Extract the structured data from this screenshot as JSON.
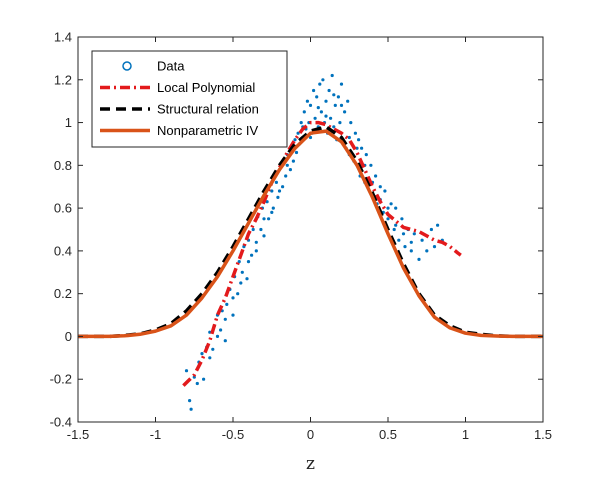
{
  "chart_data": {
    "type": "scatter",
    "title": "",
    "xlabel": "z",
    "ylabel": "",
    "xlim": [
      -1.5,
      1.5
    ],
    "ylim": [
      -0.4,
      1.4
    ],
    "xticks": [
      -1.5,
      -1,
      -0.5,
      0,
      0.5,
      1,
      1.5
    ],
    "yticks": [
      -0.4,
      -0.2,
      0,
      0.2,
      0.4,
      0.6,
      0.8,
      1,
      1.2,
      1.4
    ],
    "xtick_labels": [
      "-1.5",
      "-1",
      "-0.5",
      "0",
      "0.5",
      "1",
      "1.5"
    ],
    "ytick_labels": [
      "-0.4",
      "-0.2",
      "0",
      "0.2",
      "0.4",
      "0.6",
      "0.8",
      "1",
      "1.2",
      "1.4"
    ],
    "grid": false,
    "legend_position": "top-left",
    "series": [
      {
        "name": "Data",
        "kind": "scatter",
        "color": "#0072bd",
        "marker": "circle",
        "points": [
          [
            -0.8,
            -0.16
          ],
          [
            -0.78,
            -0.3
          ],
          [
            -0.77,
            -0.34
          ],
          [
            -0.75,
            -0.19
          ],
          [
            -0.73,
            -0.22
          ],
          [
            -0.72,
            -0.12
          ],
          [
            -0.7,
            -0.08
          ],
          [
            -0.69,
            -0.2
          ],
          [
            -0.67,
            -0.05
          ],
          [
            -0.65,
            0.02
          ],
          [
            -0.63,
            -0.06
          ],
          [
            -0.62,
            0.05
          ],
          [
            -0.6,
            0.1
          ],
          [
            -0.58,
            0.03
          ],
          [
            -0.57,
            0.12
          ],
          [
            -0.55,
            -0.02
          ],
          [
            -0.54,
            0.15
          ],
          [
            -0.52,
            0.22
          ],
          [
            -0.5,
            0.1
          ],
          [
            -0.49,
            0.28
          ],
          [
            -0.47,
            0.2
          ],
          [
            -0.46,
            0.35
          ],
          [
            -0.44,
            0.3
          ],
          [
            -0.43,
            0.42
          ],
          [
            -0.41,
            0.27
          ],
          [
            -0.4,
            0.45
          ],
          [
            -0.38,
            0.38
          ],
          [
            -0.37,
            0.5
          ],
          [
            -0.35,
            0.44
          ],
          [
            -0.34,
            0.56
          ],
          [
            -0.32,
            0.5
          ],
          [
            -0.31,
            0.6
          ],
          [
            -0.3,
            0.47
          ],
          [
            -0.28,
            0.63
          ],
          [
            -0.27,
            0.55
          ],
          [
            -0.25,
            0.68
          ],
          [
            -0.24,
            0.6
          ],
          [
            -0.22,
            0.72
          ],
          [
            -0.21,
            0.65
          ],
          [
            -0.2,
            0.78
          ],
          [
            -0.18,
            0.7
          ],
          [
            -0.17,
            0.82
          ],
          [
            -0.16,
            0.75
          ],
          [
            -0.15,
            0.85
          ],
          [
            -0.13,
            0.78
          ],
          [
            -0.12,
            0.88
          ],
          [
            -0.11,
            0.82
          ],
          [
            -0.1,
            0.92
          ],
          [
            -0.09,
            0.86
          ],
          [
            -0.08,
            0.95
          ],
          [
            -0.07,
            0.9
          ],
          [
            -0.06,
            1.0
          ],
          [
            -0.05,
            0.93
          ],
          [
            -0.04,
            1.05
          ],
          [
            -0.03,
            0.97
          ],
          [
            -0.02,
            1.1
          ],
          [
            -0.01,
            1.0
          ],
          [
            0.0,
            1.08
          ],
          [
            0.01,
            0.95
          ],
          [
            0.02,
            1.15
          ],
          [
            0.03,
            1.02
          ],
          [
            0.04,
            1.12
          ],
          [
            0.05,
            0.98
          ],
          [
            0.06,
            1.18
          ],
          [
            0.07,
            1.05
          ],
          [
            0.08,
            1.2
          ],
          [
            0.09,
            1.0
          ],
          [
            0.1,
            1.1
          ],
          [
            0.11,
            0.95
          ],
          [
            0.12,
            1.15
          ],
          [
            0.13,
            1.02
          ],
          [
            0.14,
            1.22
          ],
          [
            0.15,
            0.98
          ],
          [
            0.16,
            1.08
          ],
          [
            0.17,
            0.92
          ],
          [
            0.18,
            1.12
          ],
          [
            0.19,
            1.0
          ],
          [
            0.2,
            1.18
          ],
          [
            0.21,
            0.9
          ],
          [
            0.22,
            1.05
          ],
          [
            0.23,
            0.88
          ],
          [
            0.24,
            1.1
          ],
          [
            0.25,
            0.85
          ],
          [
            0.26,
            1.0
          ],
          [
            0.28,
            0.82
          ],
          [
            0.29,
            0.95
          ],
          [
            0.3,
            0.8
          ],
          [
            0.31,
            0.92
          ],
          [
            0.32,
            0.75
          ],
          [
            0.33,
            0.88
          ],
          [
            0.35,
            0.72
          ],
          [
            0.36,
            0.85
          ],
          [
            0.37,
            0.7
          ],
          [
            0.39,
            0.8
          ],
          [
            0.4,
            0.65
          ],
          [
            0.42,
            0.75
          ],
          [
            0.43,
            0.62
          ],
          [
            0.45,
            0.7
          ],
          [
            0.47,
            0.58
          ],
          [
            0.48,
            0.68
          ],
          [
            0.5,
            0.55
          ],
          [
            0.52,
            0.62
          ],
          [
            0.54,
            0.5
          ],
          [
            0.55,
            0.6
          ],
          [
            0.57,
            0.45
          ],
          [
            0.59,
            0.55
          ],
          [
            0.61,
            0.42
          ],
          [
            0.63,
            0.5
          ],
          [
            0.65,
            0.4
          ],
          [
            0.67,
            0.48
          ],
          [
            0.7,
            0.36
          ],
          [
            0.72,
            0.45
          ],
          [
            0.75,
            0.4
          ],
          [
            0.78,
            0.5
          ],
          [
            0.8,
            0.42
          ],
          [
            0.82,
            0.52
          ],
          [
            0.85,
            0.45
          ],
          [
            -0.65,
            -0.1
          ],
          [
            -0.6,
            0.0
          ],
          [
            -0.55,
            0.08
          ],
          [
            -0.5,
            0.18
          ],
          [
            -0.45,
            0.25
          ],
          [
            -0.4,
            0.35
          ],
          [
            -0.35,
            0.4
          ],
          [
            -0.3,
            0.55
          ],
          [
            -0.25,
            0.58
          ],
          [
            -0.2,
            0.68
          ],
          [
            -0.15,
            0.8
          ],
          [
            -0.1,
            0.88
          ],
          [
            -0.05,
            0.98
          ],
          [
            0.0,
            0.93
          ],
          [
            0.05,
            1.07
          ],
          [
            0.1,
            1.03
          ],
          [
            0.15,
            1.13
          ],
          [
            0.2,
            1.08
          ],
          [
            0.25,
            0.93
          ],
          [
            0.3,
            0.88
          ],
          [
            0.35,
            0.8
          ],
          [
            0.4,
            0.72
          ],
          [
            0.45,
            0.64
          ],
          [
            0.5,
            0.6
          ],
          [
            0.55,
            0.52
          ],
          [
            0.6,
            0.48
          ],
          [
            0.65,
            0.44
          ]
        ]
      },
      {
        "name": "Local Polynomial",
        "kind": "line",
        "color": "#e31a1c",
        "dash": "dash-dot",
        "x": [
          -0.82,
          -0.75,
          -0.7,
          -0.65,
          -0.6,
          -0.55,
          -0.5,
          -0.45,
          -0.4,
          -0.35,
          -0.3,
          -0.25,
          -0.2,
          -0.15,
          -0.1,
          -0.05,
          0,
          0.05,
          0.1,
          0.15,
          0.2,
          0.25,
          0.3,
          0.35,
          0.4,
          0.45,
          0.5,
          0.55,
          0.6,
          0.65,
          0.7,
          0.75,
          0.8,
          0.85,
          0.9,
          0.95,
          0.97
        ],
        "y": [
          -0.23,
          -0.18,
          -0.11,
          -0.02,
          0.1,
          0.18,
          0.28,
          0.38,
          0.48,
          0.55,
          0.63,
          0.72,
          0.79,
          0.86,
          0.92,
          0.97,
          1.0,
          1.0,
          0.99,
          0.97,
          0.95,
          0.92,
          0.86,
          0.78,
          0.7,
          0.63,
          0.57,
          0.54,
          0.51,
          0.5,
          0.49,
          0.47,
          0.45,
          0.44,
          0.42,
          0.39,
          0.38
        ]
      },
      {
        "name": "Structural relation",
        "kind": "line",
        "color": "#000000",
        "dash": "dashed",
        "x": [
          -1.5,
          -1.3,
          -1.2,
          -1.1,
          -1.0,
          -0.9,
          -0.8,
          -0.7,
          -0.6,
          -0.5,
          -0.4,
          -0.3,
          -0.2,
          -0.1,
          0,
          0.1,
          0.2,
          0.3,
          0.4,
          0.5,
          0.6,
          0.7,
          0.8,
          0.9,
          1.0,
          1.1,
          1.2,
          1.3,
          1.5
        ],
        "y": [
          0,
          0,
          0.005,
          0.012,
          0.03,
          0.06,
          0.12,
          0.2,
          0.3,
          0.42,
          0.55,
          0.68,
          0.8,
          0.9,
          0.96,
          0.98,
          0.93,
          0.82,
          0.67,
          0.5,
          0.34,
          0.2,
          0.1,
          0.05,
          0.02,
          0.01,
          0.003,
          0,
          0
        ]
      },
      {
        "name": "Nonparametric IV",
        "kind": "line",
        "color": "#d95319",
        "dash": "solid",
        "x": [
          -1.5,
          -1.3,
          -1.2,
          -1.1,
          -1.0,
          -0.9,
          -0.8,
          -0.7,
          -0.6,
          -0.5,
          -0.4,
          -0.3,
          -0.2,
          -0.1,
          0,
          0.1,
          0.2,
          0.3,
          0.4,
          0.5,
          0.6,
          0.7,
          0.8,
          0.9,
          1.0,
          1.1,
          1.2,
          1.3,
          1.5
        ],
        "y": [
          0,
          0,
          0.003,
          0.01,
          0.025,
          0.05,
          0.1,
          0.18,
          0.28,
          0.4,
          0.53,
          0.66,
          0.78,
          0.88,
          0.95,
          0.96,
          0.91,
          0.8,
          0.65,
          0.48,
          0.32,
          0.19,
          0.09,
          0.04,
          0.015,
          0.005,
          0.002,
          0,
          0
        ]
      }
    ]
  }
}
